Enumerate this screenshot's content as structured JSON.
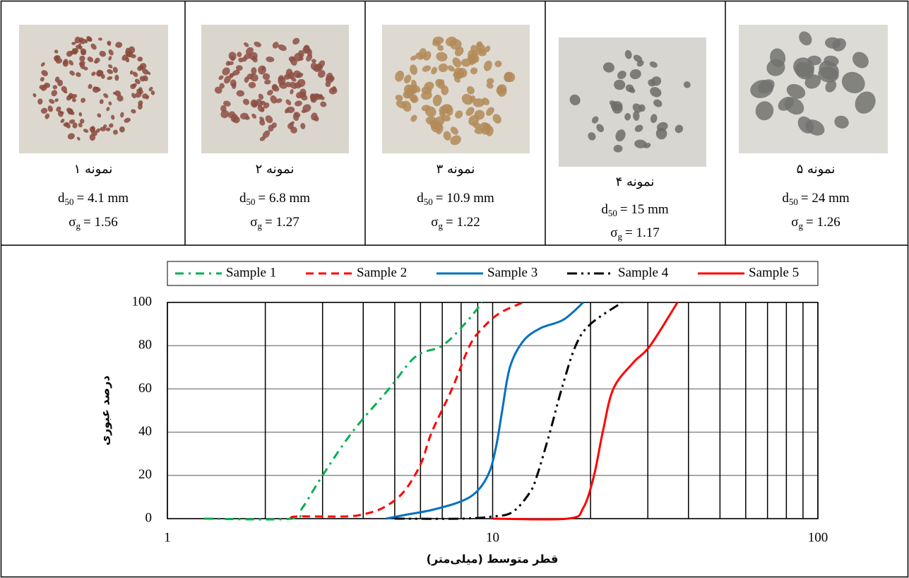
{
  "samples": [
    {
      "name": "نمونه ۱",
      "d_symbol": "d",
      "d_subscript": "50",
      "d_value": "= 4.1 mm",
      "s_symbol": "σ",
      "s_subscript": "g",
      "s_value": "= 1.56"
    },
    {
      "name": "نمونه ۲",
      "d_symbol": "d",
      "d_subscript": "50",
      "d_value": "= 6.8 mm",
      "s_symbol": "σ",
      "s_subscript": "g",
      "s_value": "= 1.27"
    },
    {
      "name": "نمونه ۳",
      "d_symbol": "d",
      "d_subscript": "50",
      "d_value": "= 10.9 mm",
      "s_symbol": "σ",
      "s_subscript": "g",
      "s_value": "= 1.22"
    },
    {
      "name": "نمونه ۴",
      "d_symbol": "d",
      "d_subscript": "50",
      "d_value": "= 15 mm",
      "s_symbol": "σ",
      "s_subscript": "g",
      "s_value": "= 1.17"
    },
    {
      "name": "نمونه ۵",
      "d_symbol": "d",
      "d_subscript": "50",
      "d_value": "= 24 mm",
      "s_symbol": "σ",
      "s_subscript": "g",
      "s_value": "= 1.26"
    }
  ],
  "chart_data": {
    "type": "line",
    "xlabel": "قطر متوسط (میلی‌متر)",
    "ylabel": "درصد عبوری",
    "xscale": "log",
    "xlim": [
      1,
      100
    ],
    "xticks": [
      1,
      10,
      100
    ],
    "x_grid": [
      2,
      3,
      4,
      5,
      6,
      7,
      8,
      9,
      20,
      30,
      40,
      50,
      60,
      70,
      80,
      90
    ],
    "ylim": [
      0,
      100
    ],
    "yticks": [
      0,
      20,
      40,
      60,
      80,
      100
    ],
    "grid": true,
    "legend": "top",
    "series": [
      {
        "name": "Sample 1",
        "color": "#00b050",
        "dash": "dash-dot",
        "x": [
          1.3,
          2.4,
          2.6,
          3.0,
          3.7,
          4.8,
          5.8,
          7.0,
          8.2,
          9.3
        ],
        "values": [
          0,
          0,
          5,
          20,
          40,
          60,
          75,
          80,
          90,
          100
        ]
      },
      {
        "name": "Sample 2",
        "color": "#ff0000",
        "dash": "dashed",
        "x": [
          2.4,
          2.5,
          3.5,
          4,
          4.6,
          5.3,
          6,
          6.5,
          7.5,
          8.5,
          9.3,
          10.5,
          12.4
        ],
        "values": [
          0,
          1,
          1,
          2,
          5,
          12,
          25,
          40,
          60,
          80,
          88,
          95,
          100
        ]
      },
      {
        "name": "Sample 3",
        "color": "#0070c0",
        "dash": "solid",
        "x": [
          4.7,
          5.5,
          6.5,
          8,
          9,
          9.8,
          10.3,
          10.7,
          11.3,
          12.4,
          14,
          16.5,
          19
        ],
        "values": [
          0,
          2,
          4,
          8,
          13,
          22,
          35,
          50,
          70,
          82,
          88,
          92,
          100
        ]
      },
      {
        "name": "Sample 4",
        "color": "#000000",
        "dash": "dash-dot-dot",
        "x": [
          5,
          8,
          10,
          11.5,
          13,
          13.7,
          15,
          16.3,
          18,
          20,
          25
        ],
        "values": [
          0,
          0,
          1,
          3,
          12,
          20,
          40,
          60,
          80,
          90,
          100
        ]
      },
      {
        "name": "Sample 5",
        "color": "#ff0000",
        "dash": "solid",
        "x": [
          10,
          17,
          19,
          20.5,
          21.8,
          23.5,
          27,
          30.5,
          37
        ],
        "values": [
          0,
          0,
          5,
          20,
          40,
          60,
          72,
          80,
          100
        ]
      }
    ]
  }
}
